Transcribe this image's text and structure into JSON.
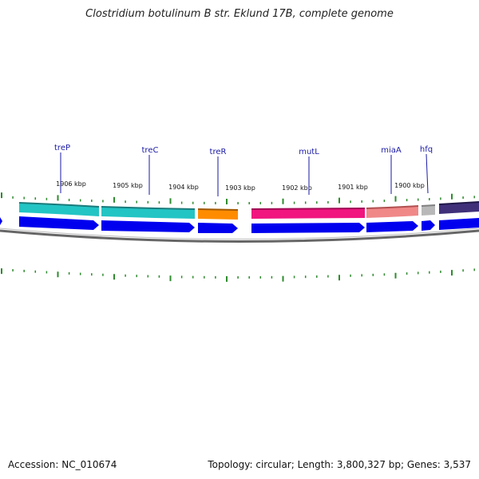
{
  "title": "Clostridium botulinum B str. Eklund 17B, complete genome",
  "accession": "Accession: NC_010674",
  "stats": "Topology: circular; Length: 3,800,327 bp; Genes: 3,537",
  "colors": {
    "label": "#1a1aa6",
    "cds": "#0000ee",
    "tick": "#2e8b2e",
    "backbone": "#666666",
    "gene_colors": [
      "#23c4c4",
      "#23c4c4",
      "#ff8c00",
      "#f0157f",
      "#f08888",
      "#b8b8b8",
      "#40307a"
    ]
  },
  "scale_labels": [
    "1906 kbp",
    "1905 kbp",
    "1904 kbp",
    "1903 kbp",
    "1902 kbp",
    "1901 kbp",
    "1900 kbp"
  ],
  "genes": [
    {
      "name": "treP"
    },
    {
      "name": "treC"
    },
    {
      "name": "treR"
    },
    {
      "name": "mutL"
    },
    {
      "name": "miaA"
    },
    {
      "name": "hfq"
    }
  ]
}
